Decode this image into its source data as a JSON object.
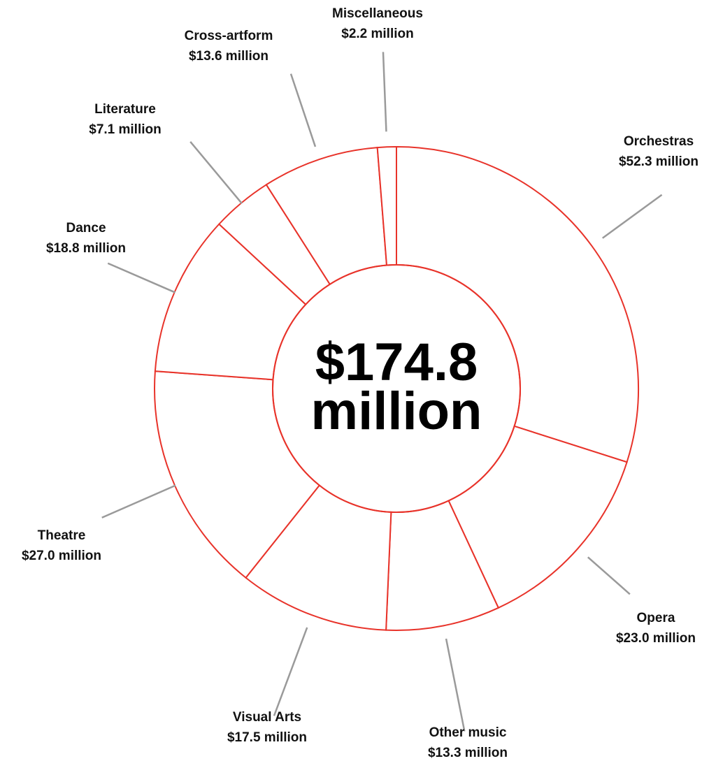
{
  "chart_data": {
    "type": "pie",
    "total_label": [
      "$174.8",
      "million"
    ],
    "slices": [
      {
        "category": "Orchestras",
        "value": 52.3,
        "value_label": "$52.3 million"
      },
      {
        "category": "Opera",
        "value": 23.0,
        "value_label": "$23.0 million"
      },
      {
        "category": "Other music",
        "value": 13.3,
        "value_label": "$13.3 million"
      },
      {
        "category": "Visual Arts",
        "value": 17.5,
        "value_label": "$17.5 million"
      },
      {
        "category": "Theatre",
        "value": 27.0,
        "value_label": "$27.0 million"
      },
      {
        "category": "Dance",
        "value": 18.8,
        "value_label": "$18.8 million"
      },
      {
        "category": "Literature",
        "value": 7.1,
        "value_label": "$7.1 million"
      },
      {
        "category": "Cross-artform",
        "value": 13.6,
        "value_label": "$13.6 million"
      },
      {
        "category": "Miscellaneous",
        "value": 2.2,
        "value_label": "$2.2 million"
      }
    ],
    "colors": {
      "slice_stroke": "#e8332a",
      "leader_line": "#9a9a9a",
      "text": "#111111"
    }
  }
}
